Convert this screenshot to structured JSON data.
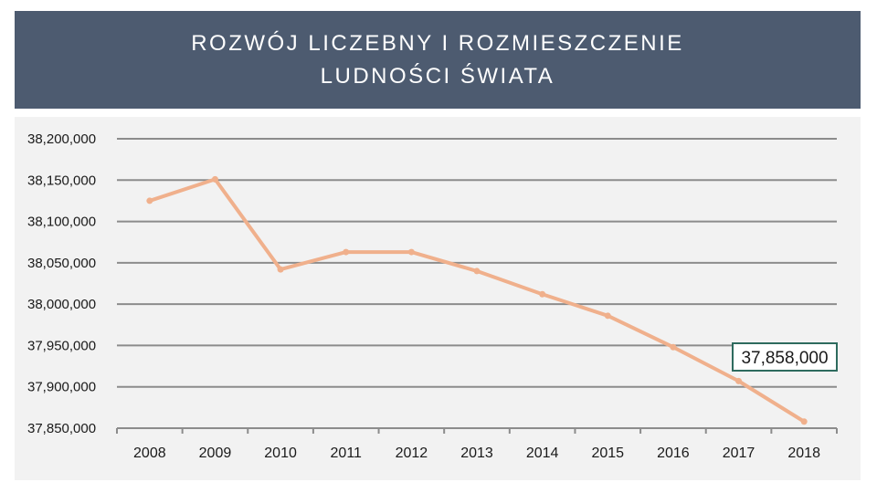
{
  "title": "ROZWÓJ LICZEBNY I ROZMIESZCZENIE LUDNOŚCI ŚWIATA",
  "colors": {
    "header_bg": "#4d5b70",
    "panel_bg": "#f2f2f2",
    "line": "#f0b08c",
    "grid": "#8c8c8c",
    "callout_border": "#2e6b5e"
  },
  "chart_data": {
    "type": "line",
    "title": "",
    "xlabel": "",
    "ylabel": "",
    "categories": [
      "2008",
      "2009",
      "2010",
      "2011",
      "2012",
      "2013",
      "2014",
      "2015",
      "2016",
      "2017",
      "2018"
    ],
    "series": [
      {
        "values": [
          38125000,
          38151000,
          38042000,
          38063000,
          38063000,
          38040000,
          38012000,
          37986000,
          37948000,
          37907000,
          37858000
        ]
      }
    ],
    "ylim": [
      37850000,
      38200000
    ],
    "yticks": [
      37850000,
      37900000,
      37950000,
      38000000,
      38050000,
      38100000,
      38150000,
      38200000
    ],
    "ytick_labels": [
      "37,850,000",
      "37,900,000",
      "37,950,000",
      "38,000,000",
      "38,050,000",
      "38,100,000",
      "38,150,000",
      "38,200,000"
    ],
    "grid": true,
    "legend": "none",
    "annotation": {
      "category": "2018",
      "text": "37,858,000"
    }
  }
}
